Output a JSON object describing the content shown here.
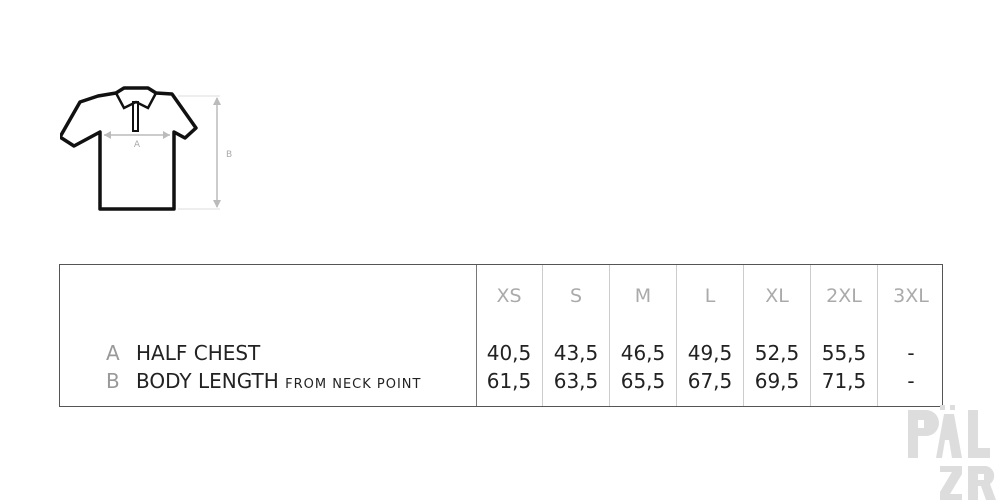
{
  "diagram": {
    "label_a": "A",
    "label_b": "B"
  },
  "table": {
    "sizes": [
      "XS",
      "S",
      "M",
      "L",
      "XL",
      "2XL",
      "3XL"
    ],
    "rows": [
      {
        "key": "A",
        "label": "HALF CHEST",
        "sublabel": "",
        "values": [
          "40,5",
          "43,5",
          "46,5",
          "49,5",
          "52,5",
          "55,5",
          "-"
        ]
      },
      {
        "key": "B",
        "label": "BODY LENGTH",
        "sublabel": "FROM NECK POINT",
        "values": [
          "61,5",
          "63,5",
          "65,5",
          "67,5",
          "69,5",
          "71,5",
          "-"
        ]
      }
    ]
  },
  "watermark": {
    "text": "PÄL ZR"
  }
}
